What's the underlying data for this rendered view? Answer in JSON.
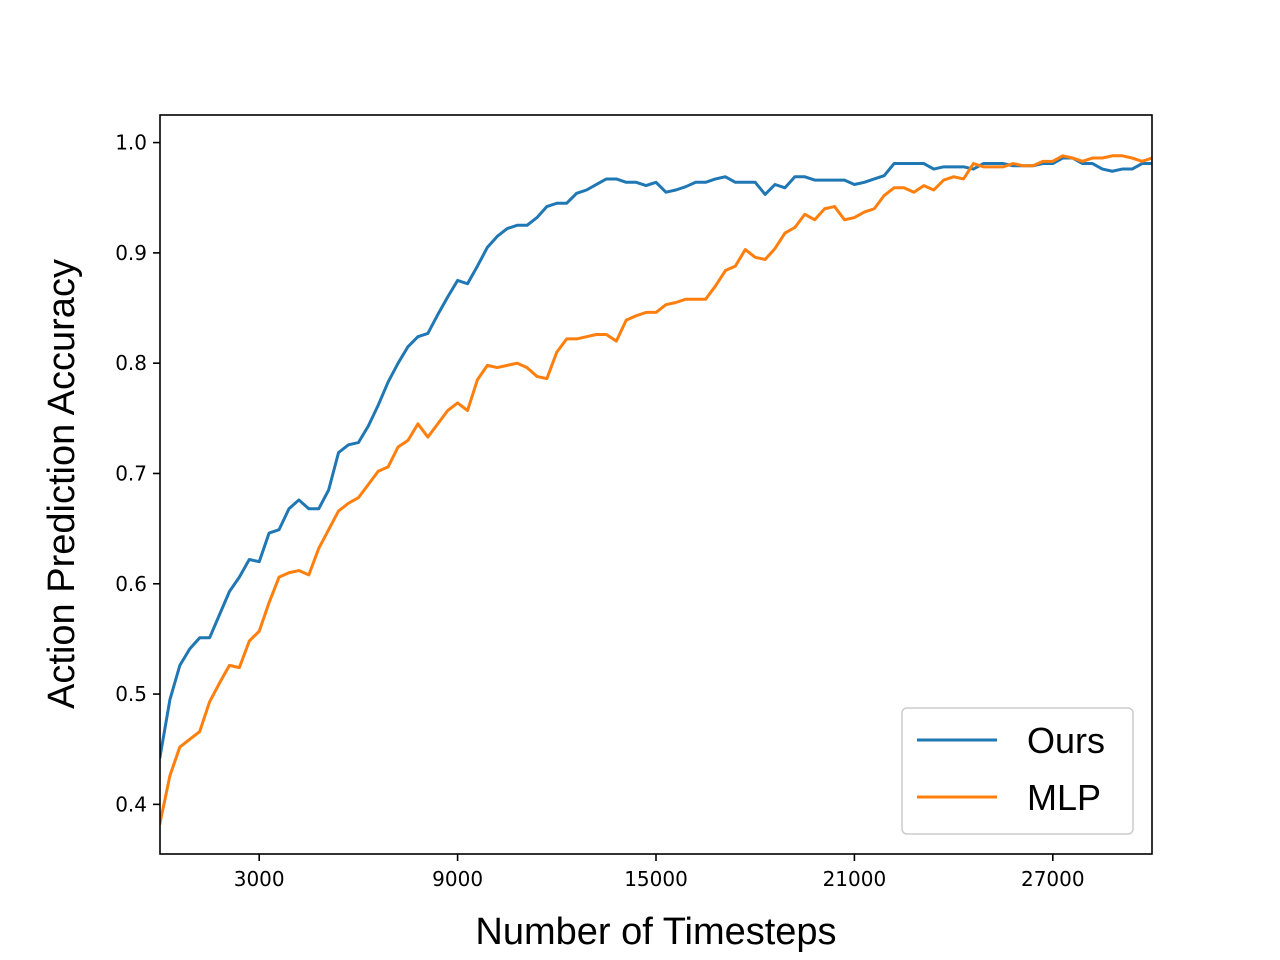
{
  "chart_data": {
    "type": "line",
    "title": "",
    "xlabel": "Number of Timesteps",
    "ylabel": "Action Prediction Accuracy",
    "xlim": [
      0,
      30000
    ],
    "ylim": [
      0.355,
      1.025
    ],
    "xticks": [
      3000,
      9000,
      15000,
      21000,
      27000
    ],
    "xtick_labels": [
      "3000",
      "9000",
      "15000",
      "21000",
      "27000"
    ],
    "yticks": [
      0.4,
      0.5,
      0.6,
      0.7,
      0.8,
      0.9,
      1.0
    ],
    "ytick_labels": [
      "0.4",
      "0.5",
      "0.6",
      "0.7",
      "0.8",
      "0.9",
      "1.0"
    ],
    "grid": false,
    "legend_position": "bottom-right",
    "series": [
      {
        "name": "Ours",
        "color": "#1f77b4",
        "x": [
          0,
          300,
          600,
          900,
          1200,
          1500,
          1800,
          2100,
          2400,
          2700,
          3000,
          3300,
          3600,
          3900,
          4200,
          4500,
          4800,
          5100,
          5400,
          5700,
          6000,
          6300,
          6600,
          6900,
          7200,
          7500,
          7800,
          8100,
          8400,
          8700,
          9000,
          9300,
          9600,
          9900,
          10200,
          10500,
          10800,
          11100,
          11400,
          11700,
          12000,
          12300,
          12600,
          12900,
          13200,
          13500,
          13800,
          14100,
          14400,
          14700,
          15000,
          15300,
          15600,
          15900,
          16200,
          16500,
          16800,
          17100,
          17400,
          17700,
          18000,
          18300,
          18600,
          18900,
          19200,
          19500,
          19800,
          20100,
          20400,
          20700,
          21000,
          21300,
          21600,
          21900,
          22200,
          22500,
          22800,
          23100,
          23400,
          23700,
          24000,
          24300,
          24600,
          24900,
          25200,
          25500,
          25800,
          26100,
          26400,
          26700,
          27000,
          27300,
          27600,
          27900,
          28200,
          28500,
          28800,
          29100,
          29400,
          29700,
          30000
        ],
        "y": [
          0.443,
          0.495,
          0.526,
          0.541,
          0.551,
          0.551,
          0.572,
          0.593,
          0.606,
          0.622,
          0.62,
          0.646,
          0.649,
          0.668,
          0.676,
          0.668,
          0.668,
          0.685,
          0.719,
          0.726,
          0.728,
          0.743,
          0.762,
          0.783,
          0.8,
          0.815,
          0.824,
          0.827,
          0.844,
          0.86,
          0.875,
          0.872,
          0.888,
          0.905,
          0.915,
          0.922,
          0.925,
          0.925,
          0.932,
          0.942,
          0.945,
          0.945,
          0.954,
          0.957,
          0.962,
          0.967,
          0.967,
          0.964,
          0.964,
          0.961,
          0.964,
          0.955,
          0.957,
          0.96,
          0.964,
          0.964,
          0.967,
          0.969,
          0.964,
          0.964,
          0.964,
          0.953,
          0.962,
          0.959,
          0.969,
          0.969,
          0.966,
          0.966,
          0.966,
          0.966,
          0.962,
          0.964,
          0.967,
          0.97,
          0.981,
          0.981,
          0.981,
          0.981,
          0.976,
          0.978,
          0.978,
          0.978,
          0.976,
          0.981,
          0.981,
          0.981,
          0.979,
          0.979,
          0.979,
          0.981,
          0.981,
          0.986,
          0.986,
          0.981,
          0.981,
          0.976,
          0.974,
          0.976,
          0.976,
          0.981,
          0.981
        ]
      },
      {
        "name": "MLP",
        "color": "#ff7f0e",
        "x": [
          0,
          300,
          600,
          900,
          1200,
          1500,
          1800,
          2100,
          2400,
          2700,
          3000,
          3300,
          3600,
          3900,
          4200,
          4500,
          4800,
          5100,
          5400,
          5700,
          6000,
          6300,
          6600,
          6900,
          7200,
          7500,
          7800,
          8100,
          8400,
          8700,
          9000,
          9300,
          9600,
          9900,
          10200,
          10500,
          10800,
          11100,
          11400,
          11700,
          12000,
          12300,
          12600,
          12900,
          13200,
          13500,
          13800,
          14100,
          14400,
          14700,
          15000,
          15300,
          15600,
          15900,
          16200,
          16500,
          16800,
          17100,
          17400,
          17700,
          18000,
          18300,
          18600,
          18900,
          19200,
          19500,
          19800,
          20100,
          20400,
          20700,
          21000,
          21300,
          21600,
          21900,
          22200,
          22500,
          22800,
          23100,
          23400,
          23700,
          24000,
          24300,
          24600,
          24900,
          25200,
          25500,
          25800,
          26100,
          26400,
          26700,
          27000,
          27300,
          27600,
          27900,
          28200,
          28500,
          28800,
          29100,
          29400,
          29700,
          30000
        ],
        "y": [
          0.383,
          0.426,
          0.452,
          0.459,
          0.466,
          0.493,
          0.51,
          0.526,
          0.524,
          0.548,
          0.557,
          0.583,
          0.606,
          0.61,
          0.612,
          0.608,
          0.632,
          0.649,
          0.666,
          0.673,
          0.678,
          0.69,
          0.702,
          0.706,
          0.724,
          0.73,
          0.745,
          0.733,
          0.745,
          0.757,
          0.764,
          0.757,
          0.785,
          0.798,
          0.796,
          0.798,
          0.8,
          0.796,
          0.788,
          0.786,
          0.81,
          0.822,
          0.822,
          0.824,
          0.826,
          0.826,
          0.82,
          0.839,
          0.843,
          0.846,
          0.846,
          0.853,
          0.855,
          0.858,
          0.858,
          0.858,
          0.87,
          0.884,
          0.888,
          0.903,
          0.896,
          0.894,
          0.904,
          0.918,
          0.923,
          0.935,
          0.93,
          0.94,
          0.942,
          0.93,
          0.932,
          0.937,
          0.94,
          0.952,
          0.959,
          0.959,
          0.955,
          0.961,
          0.957,
          0.966,
          0.969,
          0.967,
          0.981,
          0.978,
          0.978,
          0.978,
          0.981,
          0.979,
          0.979,
          0.983,
          0.983,
          0.988,
          0.986,
          0.983,
          0.986,
          0.986,
          0.988,
          0.988,
          0.986,
          0.983,
          0.986
        ]
      }
    ]
  }
}
